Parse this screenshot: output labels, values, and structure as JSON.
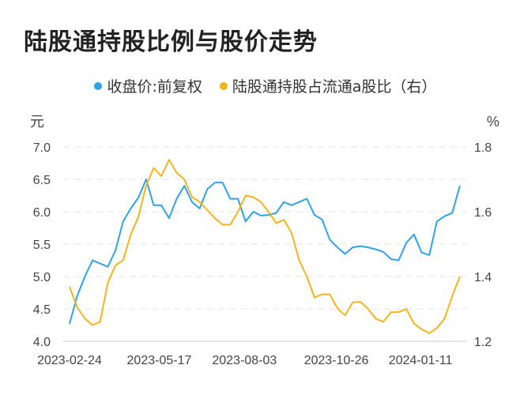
{
  "chart_data": {
    "type": "line",
    "title": "陆股通持股比例与股价走势",
    "left_unit": "元",
    "right_unit": "%",
    "left_ylim": [
      4.0,
      7.0
    ],
    "right_ylim": [
      1.2,
      1.8
    ],
    "left_ticks": [
      "7.0",
      "6.5",
      "6.0",
      "5.5",
      "5.0",
      "4.5",
      "4.0"
    ],
    "right_ticks": [
      "1.8",
      "1.6",
      "1.4",
      "1.2"
    ],
    "x_ticks": [
      "2023-02-24",
      "2023-05-17",
      "2023-08-03",
      "2023-10-26",
      "2024-01-11"
    ],
    "grid": true,
    "legend_position": "top",
    "x": [
      "2023-02-24",
      "2023-03-03",
      "2023-03-10",
      "2023-03-17",
      "2023-03-24",
      "2023-03-31",
      "2023-04-07",
      "2023-04-14",
      "2023-04-21",
      "2023-04-28",
      "2023-05-05",
      "2023-05-12",
      "2023-05-19",
      "2023-05-26",
      "2023-06-02",
      "2023-06-09",
      "2023-06-16",
      "2023-06-23",
      "2023-06-30",
      "2023-07-07",
      "2023-07-14",
      "2023-07-21",
      "2023-07-28",
      "2023-08-04",
      "2023-08-11",
      "2023-08-18",
      "2023-08-25",
      "2023-09-01",
      "2023-09-08",
      "2023-09-15",
      "2023-09-22",
      "2023-09-29",
      "2023-10-06",
      "2023-10-13",
      "2023-10-20",
      "2023-10-27",
      "2023-11-03",
      "2023-11-10",
      "2023-11-17",
      "2023-11-24",
      "2023-12-01",
      "2023-12-08",
      "2023-12-15",
      "2023-12-22",
      "2023-12-29",
      "2024-01-05",
      "2024-01-12",
      "2024-01-19",
      "2024-01-26",
      "2024-02-02",
      "2024-02-09",
      "2024-02-16"
    ],
    "series": [
      {
        "name": "收盘价:前复权",
        "axis": "left",
        "color": "#2fa3e6",
        "values": [
          4.27,
          4.7,
          5.0,
          5.25,
          5.2,
          5.15,
          5.4,
          5.85,
          6.05,
          6.22,
          6.5,
          6.1,
          6.1,
          5.9,
          6.2,
          6.4,
          6.15,
          6.05,
          6.35,
          6.45,
          6.45,
          6.2,
          6.2,
          5.85,
          6.0,
          5.94,
          5.95,
          5.98,
          6.15,
          6.1,
          6.15,
          6.2,
          5.95,
          5.88,
          5.57,
          5.45,
          5.35,
          5.45,
          5.47,
          5.45,
          5.42,
          5.38,
          5.27,
          5.25,
          5.52,
          5.65,
          5.37,
          5.33,
          5.85,
          5.93,
          5.98,
          6.4
        ]
      },
      {
        "name": "陆股通持股占流通a股比（右）",
        "axis": "right",
        "color": "#f5b41e",
        "values": [
          1.368,
          1.305,
          1.27,
          1.25,
          1.26,
          1.38,
          1.435,
          1.45,
          1.53,
          1.585,
          1.68,
          1.735,
          1.71,
          1.76,
          1.72,
          1.7,
          1.645,
          1.63,
          1.605,
          1.58,
          1.56,
          1.56,
          1.6,
          1.65,
          1.645,
          1.63,
          1.6,
          1.565,
          1.575,
          1.535,
          1.45,
          1.4,
          1.335,
          1.345,
          1.345,
          1.302,
          1.28,
          1.32,
          1.322,
          1.3,
          1.27,
          1.26,
          1.29,
          1.29,
          1.3,
          1.255,
          1.237,
          1.225,
          1.241,
          1.27,
          1.34,
          1.4
        ]
      }
    ]
  }
}
